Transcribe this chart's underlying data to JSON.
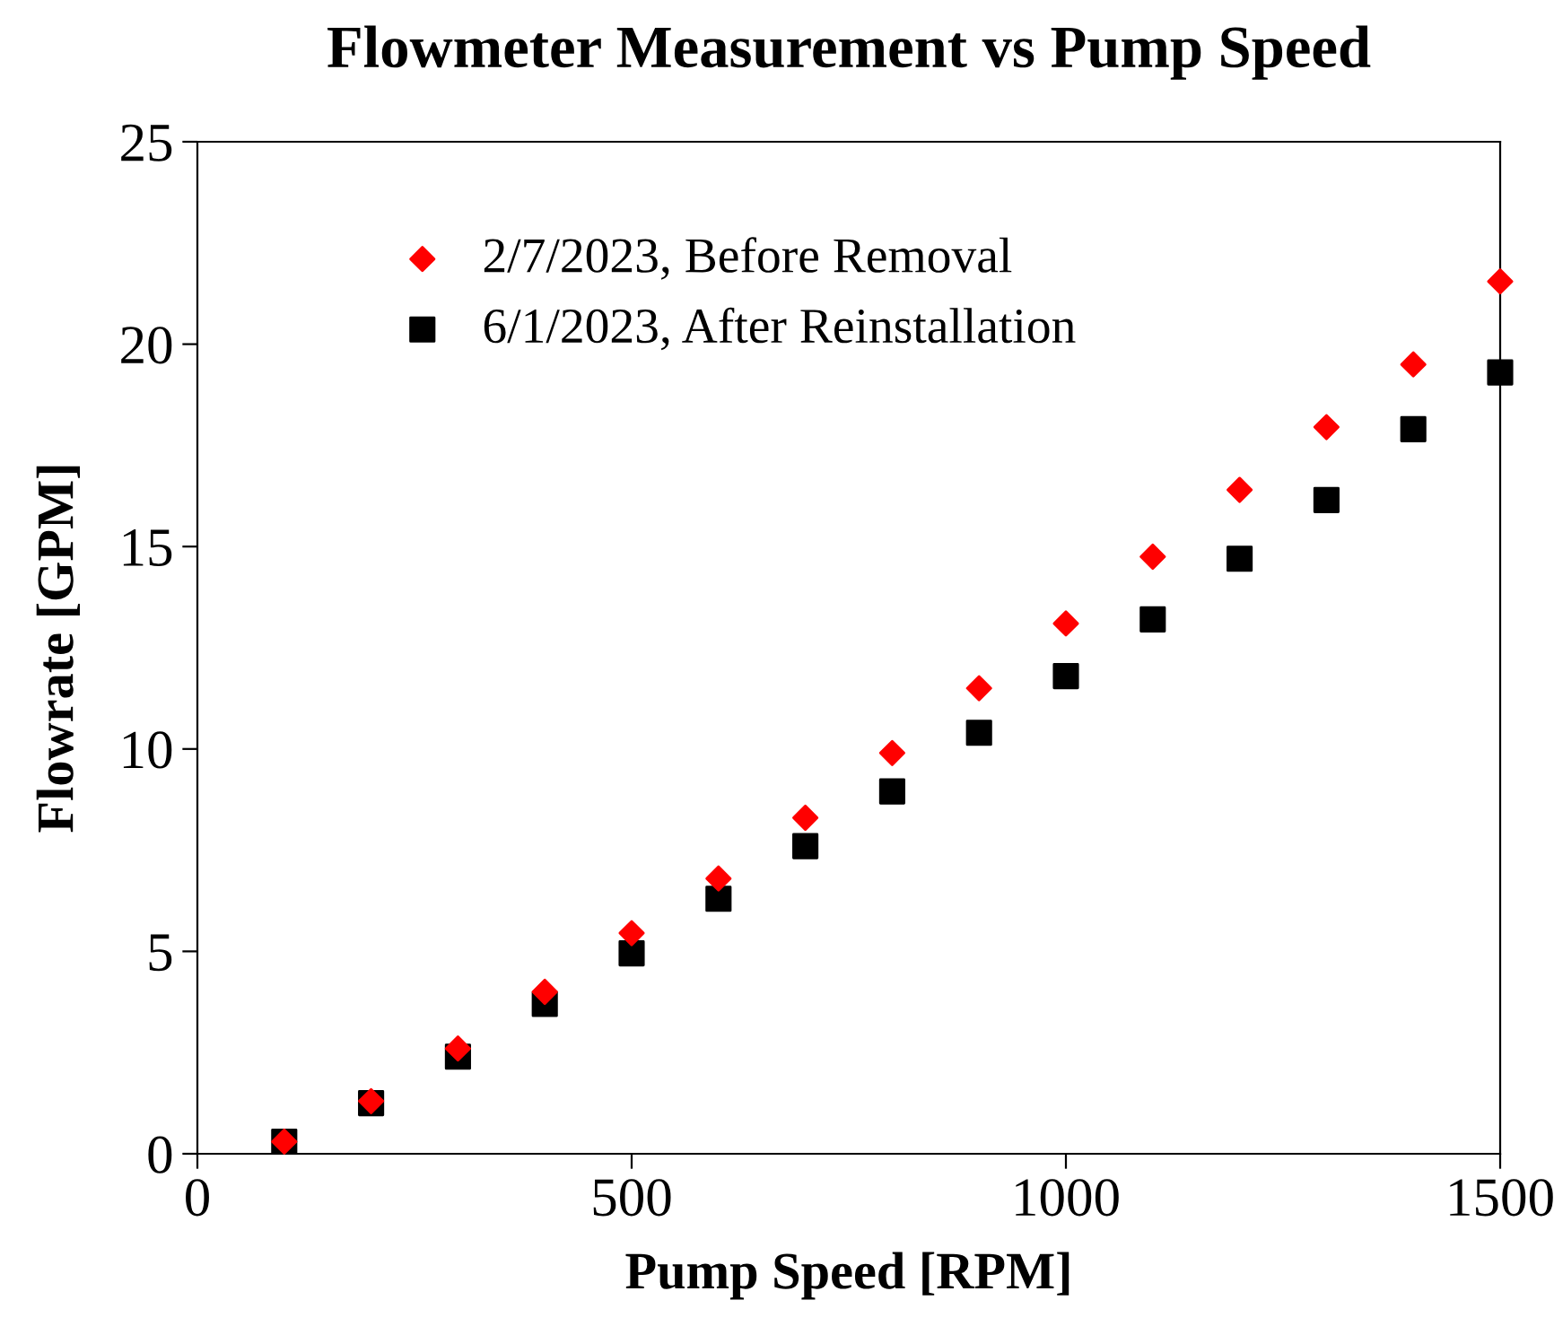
{
  "chart_data": {
    "type": "scatter",
    "title": "Flowmeter Measurement vs Pump Speed",
    "xlabel": "Pump Speed [RPM]",
    "ylabel": "Flowrate [GPM]",
    "x": [
      100,
      200,
      300,
      400,
      500,
      600,
      700,
      800,
      900,
      1000,
      1100,
      1200,
      1300,
      1400,
      1500
    ],
    "series": [
      {
        "name": "2/7/2023, Before Removal",
        "color": "#ff0000",
        "marker": "diamond",
        "values": [
          0.3,
          1.3,
          2.6,
          4.0,
          5.45,
          6.8,
          8.3,
          9.9,
          11.5,
          13.1,
          14.75,
          16.4,
          17.95,
          19.5,
          21.55
        ]
      },
      {
        "name": "6/1/2023, After Reinstallation",
        "color": "#000000",
        "marker": "square",
        "values": [
          0.3,
          1.25,
          2.4,
          3.7,
          4.95,
          6.3,
          7.6,
          8.95,
          10.4,
          11.8,
          13.2,
          14.7,
          16.15,
          17.9,
          19.3
        ]
      }
    ],
    "xlim": [
      0,
      1500
    ],
    "xticks": [
      0,
      500,
      1000,
      1500
    ],
    "ylim": [
      0,
      25
    ],
    "yticks": [
      0,
      5,
      10,
      15,
      20,
      25
    ],
    "grid": false,
    "legend": "top left"
  }
}
